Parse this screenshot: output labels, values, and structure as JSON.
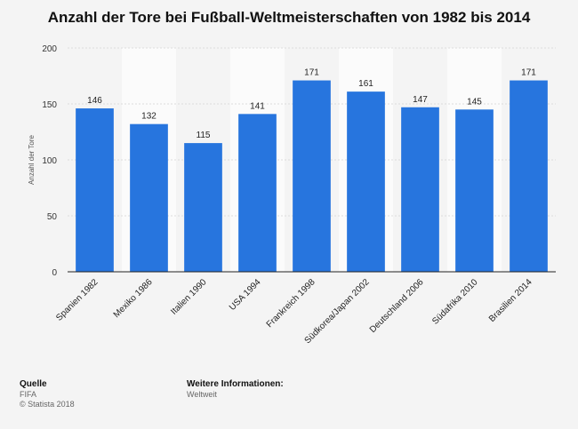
{
  "chart_data": {
    "type": "bar",
    "title": "Anzahl der Tore bei Fußball-Weltmeisterschaften von 1982 bis 2014",
    "xlabel": "",
    "ylabel": "Anzahl der Tore",
    "ylim": [
      0,
      200
    ],
    "yticks": [
      0,
      50,
      100,
      150,
      200
    ],
    "grid": true,
    "categories": [
      "Spanien 1982",
      "Mexiko 1986",
      "Italien 1990",
      "USA 1994",
      "Frankreich 1998",
      "Südkorea/Japan 2002",
      "Deutschland 2006",
      "Südafrika 2010",
      "Brasilien 2014"
    ],
    "values": [
      146,
      132,
      115,
      141,
      171,
      161,
      147,
      145,
      171
    ],
    "bar_color": "#2775de",
    "stripe_color": "#fbfbfb"
  },
  "footer": {
    "source_heading": "Quelle",
    "source_name": "FIFA",
    "copyright": "© Statista 2018",
    "info_heading": "Weitere Informationen:",
    "info_text": "Weltweit"
  }
}
